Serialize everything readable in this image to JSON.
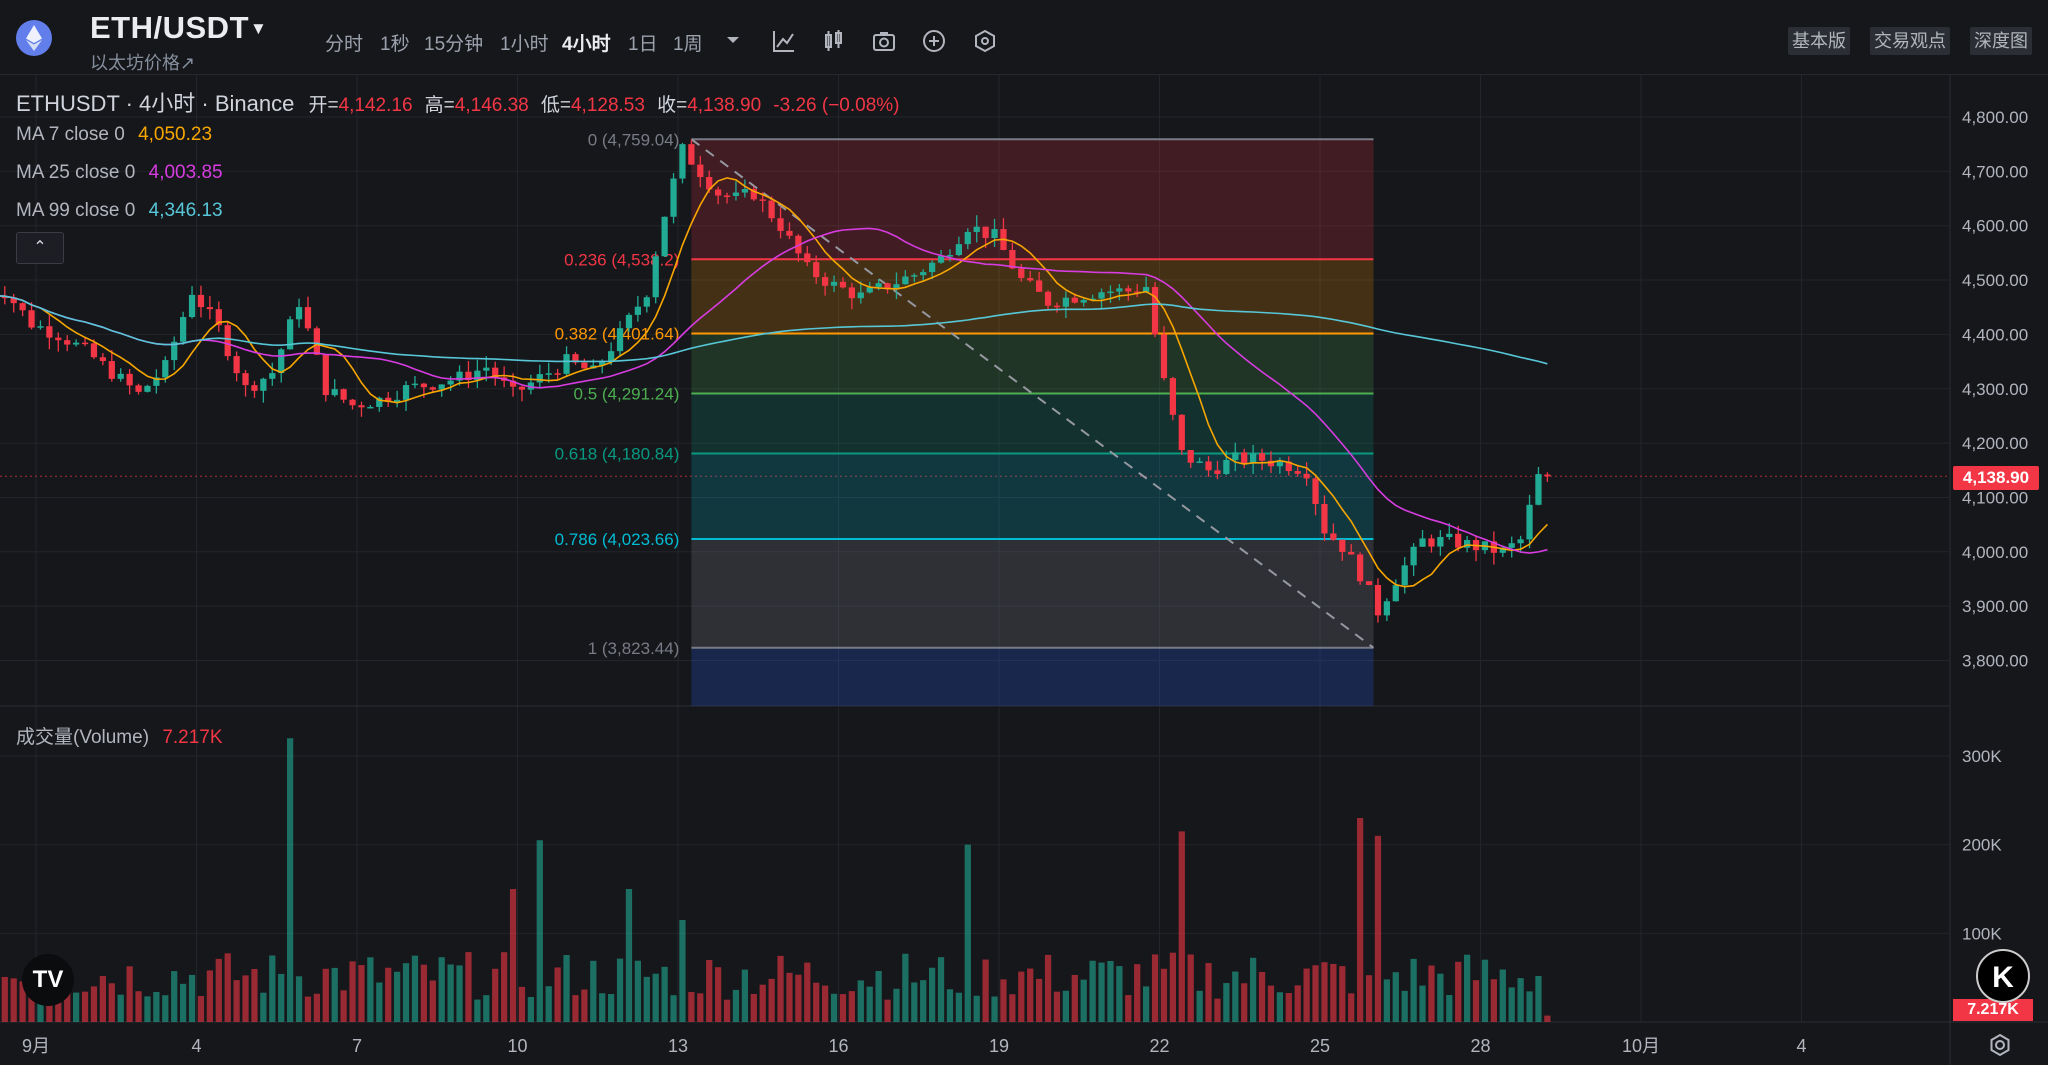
{
  "header": {
    "pair": "ETH/USDT",
    "subtitle": "以太坊价格↗",
    "intervals": [
      "分时",
      "1秒",
      "15分钟",
      "1小时",
      "4小时",
      "1日",
      "1周"
    ],
    "active_interval": "4小时",
    "view_buttons": [
      "基本版",
      "交易观点",
      "深度图"
    ],
    "tools": [
      "indicator-icon",
      "candle-style-icon",
      "camera-icon",
      "plus-icon",
      "settings-hex-icon",
      "chevron-down-icon"
    ]
  },
  "legend": {
    "symbol": "ETHUSDT · 4小时 · Binance",
    "ohlc_label_open": "开=",
    "open": "4,142.16",
    "ohlc_label_high": "高=",
    "high": "4,146.38",
    "ohlc_label_low": "低=",
    "low": "4,128.53",
    "ohlc_label_close": "收=",
    "close": "4,138.90",
    "change": "-3.26 (−0.08%)",
    "ma7_label": "MA 7 close 0",
    "ma7_value": "4,050.23",
    "ma25_label": "MA 25 close 0",
    "ma25_value": "4,003.85",
    "ma99_label": "MA 99 close 0",
    "ma99_value": "4,346.13",
    "volume_label": "成交量(Volume)",
    "volume_value": "7.217K",
    "collapse_glyph": "⌃"
  },
  "badges": {
    "last_price": "4,138.90",
    "last_volume": "7.217K"
  },
  "logos": {
    "tv": "TV",
    "k": "K"
  },
  "colors": {
    "up": "#22ab94",
    "down": "#f23645",
    "ma7": "#f7a600",
    "ma25": "#d63ce0",
    "ma99": "#57c7d8",
    "fib_0": "#787b86",
    "fib_236": "#f23645",
    "fib_382": "#ff9800",
    "fib_5": "#4caf50",
    "fib_618": "#089981",
    "fib_786": "#00bcd4",
    "fib_1": "#787b86"
  },
  "chart_data": {
    "type": "candlestick",
    "symbol": "ETHUSDT",
    "interval": "4小时",
    "exchange": "Binance",
    "ylim": [
      3720,
      4830
    ],
    "y_ticks": [
      3800,
      3900,
      4000,
      4100,
      4200,
      4300,
      4400,
      4500,
      4600,
      4700,
      4800
    ],
    "y_tick_labels": [
      "3,800.00",
      "3,900.00",
      "4,000.00",
      "4,100.00",
      "4,200.00",
      "4,300.00",
      "4,400.00",
      "4,500.00",
      "4,600.00",
      "4,700.00",
      "4,800.00"
    ],
    "x_ticks": [
      "9月",
      "4",
      "7",
      "10",
      "13",
      "16",
      "19",
      "22",
      "25",
      "28",
      "10月",
      "4"
    ],
    "x_tick_days": [
      1,
      4,
      7,
      10,
      13,
      16,
      19,
      22,
      25,
      28,
      31,
      34
    ],
    "volume_ticks": [
      "100K",
      "200K",
      "300K"
    ],
    "volume_tick_values": [
      100000,
      200000,
      300000
    ],
    "fibonacci": {
      "start_day": 13.25,
      "end_day": 26.0,
      "levels": [
        {
          "ratio": "0",
          "price": 4759.04,
          "label": "0 (4,759.04)"
        },
        {
          "ratio": "0.236",
          "price": 4538.2,
          "label": "0.236 (4,538.2)"
        },
        {
          "ratio": "0.382",
          "price": 4401.64,
          "label": "0.382 (4,401.64)"
        },
        {
          "ratio": "0.5",
          "price": 4291.24,
          "label": "0.5 (4,291.24)"
        },
        {
          "ratio": "0.618",
          "price": 4180.84,
          "label": "0.618 (4,180.84)"
        },
        {
          "ratio": "0.786",
          "price": 4023.66,
          "label": "0.786 (4,023.66)"
        },
        {
          "ratio": "1",
          "price": 3823.44,
          "label": "1 (3,823.44)"
        }
      ]
    },
    "trend_line": {
      "from_day": 13.25,
      "from_price": 4759.04,
      "to_day": 26.0,
      "to_price": 3823.44
    },
    "price_anchors": [
      [
        0.0,
        4470
      ],
      [
        0.5,
        4480
      ],
      [
        1.0,
        4420
      ],
      [
        1.5,
        4400
      ],
      [
        2.0,
        4370
      ],
      [
        2.5,
        4330
      ],
      [
        3.0,
        4290
      ],
      [
        3.5,
        4340
      ],
      [
        4.0,
        4480
      ],
      [
        4.5,
        4410
      ],
      [
        5.0,
        4300
      ],
      [
        5.5,
        4330
      ],
      [
        6.0,
        4460
      ],
      [
        6.5,
        4300
      ],
      [
        7.0,
        4270
      ],
      [
        7.5,
        4280
      ],
      [
        8.0,
        4300
      ],
      [
        8.5,
        4310
      ],
      [
        9.0,
        4320
      ],
      [
        9.5,
        4340
      ],
      [
        10.0,
        4290
      ],
      [
        10.5,
        4320
      ],
      [
        11.0,
        4350
      ],
      [
        11.5,
        4330
      ],
      [
        12.0,
        4400
      ],
      [
        12.5,
        4480
      ],
      [
        12.83,
        4620
      ],
      [
        13.17,
        4740
      ],
      [
        13.5,
        4700
      ],
      [
        13.83,
        4660
      ],
      [
        14.17,
        4650
      ],
      [
        14.5,
        4660
      ],
      [
        15.0,
        4600
      ],
      [
        15.5,
        4520
      ],
      [
        16.0,
        4490
      ],
      [
        16.5,
        4470
      ],
      [
        17.0,
        4490
      ],
      [
        17.5,
        4510
      ],
      [
        18.0,
        4540
      ],
      [
        18.5,
        4600
      ],
      [
        19.0,
        4580
      ],
      [
        19.5,
        4500
      ],
      [
        20.0,
        4460
      ],
      [
        20.5,
        4470
      ],
      [
        21.0,
        4480
      ],
      [
        21.5,
        4480
      ],
      [
        21.83,
        4490
      ],
      [
        22.17,
        4310
      ],
      [
        22.5,
        4180
      ],
      [
        23.0,
        4150
      ],
      [
        23.5,
        4170
      ],
      [
        24.0,
        4170
      ],
      [
        24.5,
        4160
      ],
      [
        24.83,
        4150
      ],
      [
        25.17,
        4040
      ],
      [
        25.5,
        4010
      ],
      [
        25.83,
        3960
      ],
      [
        26.17,
        3890
      ],
      [
        26.5,
        3950
      ],
      [
        27.0,
        4020
      ],
      [
        27.5,
        4020
      ],
      [
        28.0,
        4010
      ],
      [
        28.5,
        4000
      ],
      [
        28.83,
        4020
      ],
      [
        29.17,
        4138.9
      ]
    ],
    "last_bar": {
      "open": 4142.16,
      "high": 4146.38,
      "low": 4128.53,
      "close": 4138.9
    },
    "ma7_last": 4050.23,
    "ma25_last": 4003.85,
    "ma99_last": 4346.13,
    "volume_spikes": [
      [
        5.67,
        320000
      ],
      [
        22.33,
        215000
      ],
      [
        25.67,
        230000
      ],
      [
        10.33,
        205000
      ],
      [
        18.33,
        200000
      ],
      [
        12.0,
        150000
      ],
      [
        26.0,
        210000
      ],
      [
        13.0,
        115000
      ],
      [
        9.83,
        150000
      ]
    ]
  }
}
